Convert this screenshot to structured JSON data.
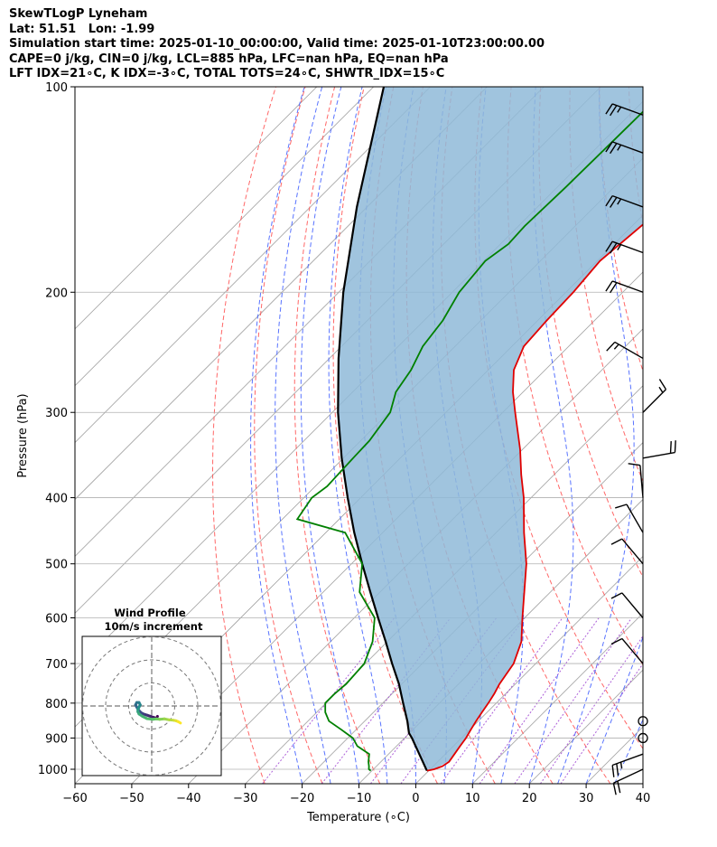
{
  "header": {
    "line1": "SkewTLogP Lyneham",
    "line2": "Lat: 51.51   Lon: -1.99",
    "line3": "Simulation start time: 2025-01-10_00:00:00, Valid time: 2025-01-10T23:00:00.00",
    "line4": "CAPE=0 j/kg, CIN=0 j/kg, LCL=885 hPa, LFC=nan hPa, EQ=nan hPa",
    "line5": "LFT IDX=21∘C, K IDX=-3∘C, TOTAL TOTS=24∘C, SHWTR_IDX=15∘C"
  },
  "colors": {
    "temperature": "#e00000",
    "dewpoint": "#008000",
    "parcel": "#000000",
    "cape_fill": "#8fbad8",
    "dry_adiabat": "#ff4c4c",
    "moist_adiabat": "#3b5bff",
    "mixing_ratio": "#9a3ad0",
    "isotherm": "#a0a0a0"
  },
  "chart_data": {
    "type": "line",
    "xlabel": "Temperature (∘C)",
    "ylabel": "Pressure (hPa)",
    "xlim": [
      -60,
      40
    ],
    "ylim": [
      1050,
      100
    ],
    "y_scale": "log",
    "skew": true,
    "grid": true,
    "x_ticks": [
      "−60",
      "−50",
      "−40",
      "−30",
      "−20",
      "−10",
      "0",
      "10",
      "20",
      "30",
      "40"
    ],
    "x_tick_values": [
      -60,
      -50,
      -40,
      -30,
      -20,
      -10,
      0,
      10,
      20,
      30,
      40
    ],
    "y_ticks": [
      "1000",
      "900",
      "800",
      "700",
      "600",
      "500",
      "400",
      "300",
      "200",
      "100"
    ],
    "y_tick_values": [
      1000,
      900,
      800,
      700,
      600,
      500,
      400,
      300,
      200,
      100
    ],
    "series": [
      {
        "role": "temperature",
        "pressure": [
          1005,
          1000,
          990,
          975,
          950,
          925,
          900,
          875,
          850,
          825,
          800,
          775,
          750,
          700,
          650,
          600,
          550,
          500,
          450,
          400,
          370,
          340,
          300,
          280,
          260,
          240,
          220,
          200,
          180,
          160,
          140,
          120,
          100
        ],
        "temperature": [
          -0.3,
          0.7,
          1.6,
          2.0,
          1.6,
          1.2,
          0.8,
          0.2,
          -0.4,
          -0.9,
          -1.4,
          -2.0,
          -2.8,
          -3.9,
          -6.4,
          -10.4,
          -14.6,
          -19.2,
          -25.1,
          -31.3,
          -35.8,
          -40.4,
          -47.8,
          -51.8,
          -55.5,
          -57.9,
          -58.4,
          -58.7,
          -59.5,
          -58.4,
          -57.2,
          -56.0,
          -54.0
        ]
      },
      {
        "role": "dewpoint",
        "pressure": [
          1005,
          1000,
          990,
          975,
          950,
          925,
          900,
          875,
          850,
          825,
          800,
          775,
          750,
          700,
          650,
          600,
          550,
          500,
          450,
          430,
          400,
          385,
          350,
          330,
          300,
          280,
          260,
          240,
          220,
          200,
          180,
          170,
          160,
          140,
          120,
          100
        ],
        "temperature": [
          -10.2,
          -10.8,
          -11.3,
          -12.2,
          -13.4,
          -16.9,
          -19.1,
          -22.6,
          -26.3,
          -28.5,
          -30.1,
          -30.1,
          -29.8,
          -30.2,
          -32.6,
          -36.4,
          -43.6,
          -48.1,
          -56.6,
          -67.4,
          -68.6,
          -67.9,
          -68.3,
          -68.5,
          -69.8,
          -72.4,
          -73.6,
          -75.7,
          -76.7,
          -78.8,
          -79.7,
          -78.6,
          -78.9,
          -78.5,
          -78.3,
          -78.1
        ]
      },
      {
        "role": "parcel",
        "pressure": [
          1005,
          1000,
          950,
          900,
          885,
          850,
          800,
          750,
          700,
          650,
          600,
          550,
          500,
          450,
          400,
          350,
          300,
          250,
          200,
          150,
          100
        ],
        "temperature": [
          -0.3,
          -0.7,
          -4.6,
          -8.7,
          -10.1,
          -12.5,
          -16.4,
          -20.5,
          -25.3,
          -30.3,
          -35.8,
          -41.7,
          -48.1,
          -55.0,
          -62.3,
          -70.3,
          -79.0,
          -88.4,
          -99.2,
          -111.8,
          -128.2
        ]
      }
    ],
    "wind_barbs": [
      {
        "pressure": 1000,
        "speed_kt": 20,
        "direction": 245
      },
      {
        "pressure": 950,
        "speed_kt": 25,
        "direction": 250
      },
      {
        "pressure": 900,
        "speed_kt": 0,
        "direction": 0
      },
      {
        "pressure": 850,
        "speed_kt": 0,
        "direction": 0
      },
      {
        "pressure": 700,
        "speed_kt": 10,
        "direction": 320
      },
      {
        "pressure": 600,
        "speed_kt": 10,
        "direction": 320
      },
      {
        "pressure": 500,
        "speed_kt": 10,
        "direction": 320
      },
      {
        "pressure": 450,
        "speed_kt": 10,
        "direction": 330
      },
      {
        "pressure": 400,
        "speed_kt": 10,
        "direction": 355
      },
      {
        "pressure": 350,
        "speed_kt": 20,
        "direction": 80
      },
      {
        "pressure": 300,
        "speed_kt": 15,
        "direction": 45
      },
      {
        "pressure": 250,
        "speed_kt": 15,
        "direction": 300
      },
      {
        "pressure": 200,
        "speed_kt": 20,
        "direction": 290
      },
      {
        "pressure": 175,
        "speed_kt": 25,
        "direction": 290
      },
      {
        "pressure": 150,
        "speed_kt": 25,
        "direction": 290
      },
      {
        "pressure": 125,
        "speed_kt": 25,
        "direction": 290
      },
      {
        "pressure": 110,
        "speed_kt": 25,
        "direction": 290
      }
    ],
    "inset": {
      "title": "Wind Profile",
      "subtitle": "10m/s increment",
      "hodograph_u": [
        2.5,
        2.0,
        1.0,
        -0.5,
        -2.0,
        -3.5,
        -4.5,
        -5.5,
        -6.5,
        -7.0,
        -6.5,
        -5.5,
        -5.0,
        -5.5,
        -6.0,
        -6.0,
        -5.5,
        -4.0,
        -2.0,
        0.5,
        2.0,
        3.5,
        5.5,
        7.5,
        9.5,
        10.5,
        11.5,
        12.5
      ],
      "hodograph_v": [
        -4.5,
        -5.5,
        -5.0,
        -4.5,
        -4.0,
        -3.5,
        -3.0,
        -2.0,
        -0.5,
        0.5,
        1.5,
        1.5,
        0.5,
        -0.5,
        -1.5,
        -2.5,
        -3.5,
        -4.5,
        -5.5,
        -5.8,
        -5.6,
        -5.8,
        -5.6,
        -6.0,
        -6.2,
        -6.4,
        -6.8,
        -7.4
      ]
    }
  }
}
